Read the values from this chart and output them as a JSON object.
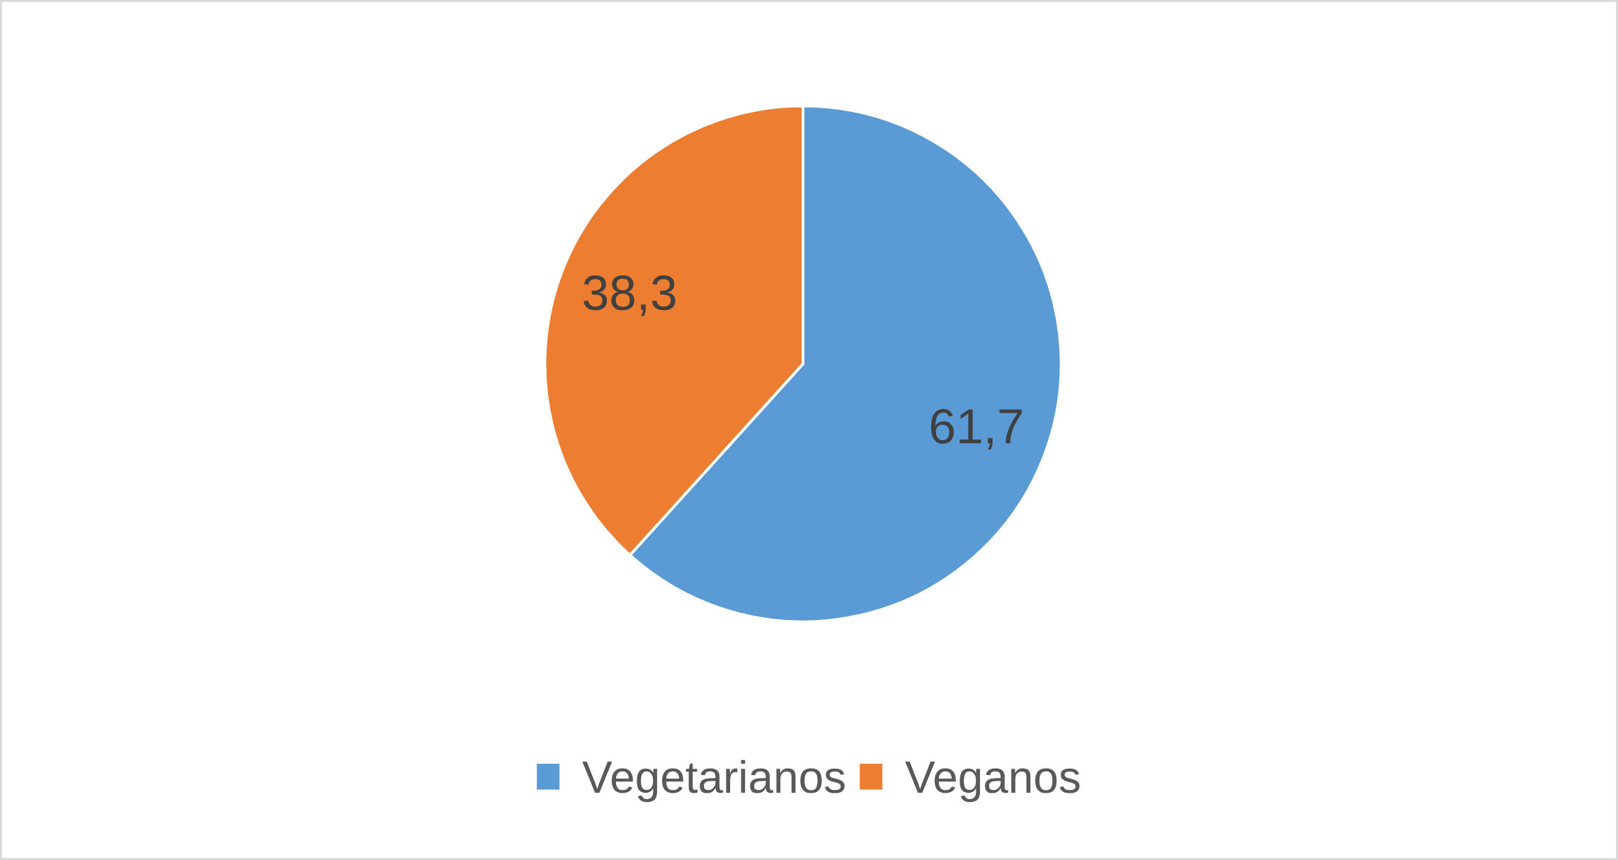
{
  "chart_data": {
    "type": "pie",
    "categories": [
      "Vegetarianos",
      "Veganos"
    ],
    "values": [
      61.7,
      38.3
    ],
    "value_labels": [
      "61,7",
      "38,3"
    ],
    "colors": [
      "#5b9bd5",
      "#ed7d31"
    ],
    "legend": "bottom"
  }
}
